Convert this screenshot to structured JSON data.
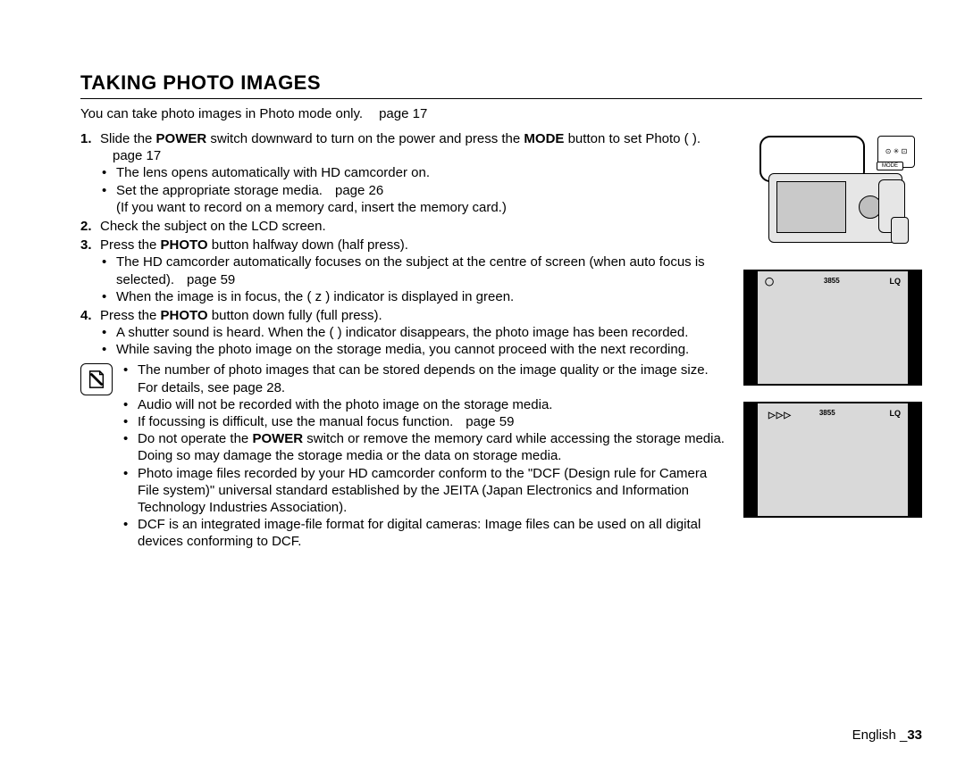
{
  "title": "TAKING PHOTO IMAGES",
  "intro": {
    "text": "You can take photo images in Photo mode only.",
    "pageref": "page 17"
  },
  "steps": [
    {
      "num": "1.",
      "parts": [
        {
          "t": "Slide the "
        },
        {
          "t": "POWER",
          "b": true
        },
        {
          "t": " switch downward to turn on the power and press the "
        },
        {
          "t": "MODE",
          "b": true
        },
        {
          "t": " button to set Photo (      )."
        }
      ],
      "pageref": "page 17",
      "bullets": [
        {
          "parts": [
            {
              "t": "The lens opens automatically with HD camcorder on."
            }
          ]
        },
        {
          "parts": [
            {
              "t": "Set the appropriate storage media."
            }
          ],
          "pageref": "page 26",
          "tail": "(If you want to record on a memory card, insert the memory card.)"
        }
      ]
    },
    {
      "num": "2.",
      "parts": [
        {
          "t": "Check the subject on the LCD screen."
        }
      ]
    },
    {
      "num": "3.",
      "parts": [
        {
          "t": "Press the "
        },
        {
          "t": "PHOTO",
          "b": true
        },
        {
          "t": " button halfway down (half press)."
        }
      ],
      "bullets": [
        {
          "parts": [
            {
              "t": "The HD camcorder automatically focuses on the subject at the centre of screen (when auto focus is selected)."
            }
          ],
          "pageref": "page 59"
        },
        {
          "parts": [
            {
              "t": "When the image is in focus, the ( z ) indicator is displayed in green."
            }
          ]
        }
      ]
    },
    {
      "num": "4.",
      "parts": [
        {
          "t": "Press the "
        },
        {
          "t": "PHOTO",
          "b": true
        },
        {
          "t": " button down fully (full press)."
        }
      ],
      "bullets": [
        {
          "parts": [
            {
              "t": "A shutter sound is heard. When the (        ) indicator disappears, the photo image has been recorded."
            }
          ]
        },
        {
          "parts": [
            {
              "t": "While saving the photo image on the storage media, you cannot proceed with the next recording."
            }
          ]
        }
      ]
    }
  ],
  "notes": [
    {
      "parts": [
        {
          "t": "The number of photo images that can be stored depends on the image quality or the image size. For details, see page 28."
        }
      ]
    },
    {
      "parts": [
        {
          "t": "Audio will not be recorded with the photo image on the storage media."
        }
      ]
    },
    {
      "parts": [
        {
          "t": "If focussing is difficult, use the manual focus function."
        }
      ],
      "pageref": "page 59"
    },
    {
      "parts": [
        {
          "t": "Do not operate the "
        },
        {
          "t": "POWER",
          "b": true
        },
        {
          "t": " switch or remove the memory card while accessing the storage media. Doing so may damage the storage media or the data on storage media."
        }
      ]
    },
    {
      "parts": [
        {
          "t": "Photo image files recorded by your HD camcorder conform to the \"DCF (Design rule for Camera File system)\" universal standard established by the JEITA (Japan Electronics and Information Technology Industries Association)."
        }
      ]
    },
    {
      "parts": [
        {
          "t": "DCF is an integrated image-file format for digital cameras: Image files can be used on all digital devices conforming to DCF."
        }
      ]
    }
  ],
  "fig1": {
    "mode_label": "MODE",
    "icon_glyphs": "⊙ ✳ ⊡"
  },
  "fig2": {
    "left_icon": "◯",
    "count": "3855",
    "right": "LQ"
  },
  "fig3": {
    "arrows": "▷▷▷",
    "count": "3855",
    "right": "LQ"
  },
  "footer": {
    "lang": "English _",
    "page": "33"
  }
}
